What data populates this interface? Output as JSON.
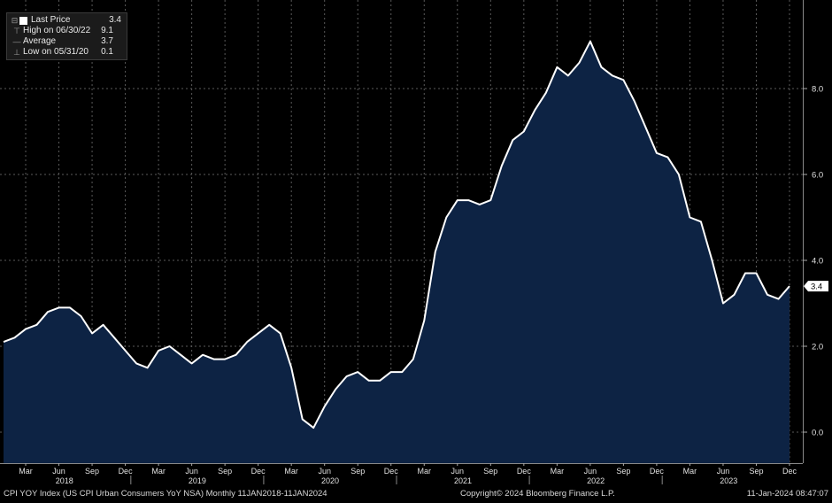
{
  "legend": {
    "items": [
      {
        "icon": "white-square-icon",
        "label": "Last Price",
        "value": "3.4"
      },
      {
        "icon": "high-marker-icon",
        "label": "High on 06/30/22",
        "value": "9.1"
      },
      {
        "icon": "average-marker-icon",
        "label": "Average",
        "value": "3.7"
      },
      {
        "icon": "low-marker-icon",
        "label": "Low on 05/31/20",
        "value": "0.1"
      }
    ]
  },
  "footer": {
    "left": "CPI YOY Index (US CPI Urban Consumers YoY NSA)  Monthly 11JAN2018-11JAN2024",
    "center": "Copyright© 2024 Bloomberg Finance L.P.",
    "right": "11-Jan-2024 08:47:07"
  },
  "last_price_tag": "3.4",
  "colors": {
    "background": "#000000",
    "area_fill": "#0d2344",
    "line": "#ffffff",
    "grid": "#666666"
  },
  "chart_data": {
    "type": "area",
    "ylim": [
      -0.7,
      9.8
    ],
    "yticks": [
      0.0,
      2.0,
      4.0,
      6.0,
      8.0
    ],
    "ytick_labels": [
      "0.0",
      "2.0",
      "4.0",
      "6.0",
      "8.0"
    ],
    "grid": true,
    "month_ticks": [
      "Mar",
      "Jun",
      "Sep",
      "Dec",
      "Mar",
      "Jun",
      "Sep",
      "Dec",
      "Mar",
      "Jun",
      "Sep",
      "Dec",
      "Mar",
      "Jun",
      "Sep",
      "Dec",
      "Mar",
      "Jun",
      "Sep",
      "Dec",
      "Mar",
      "Jun",
      "Sep",
      "Dec"
    ],
    "year_labels": [
      "2018",
      "2019",
      "2020",
      "2021",
      "2022",
      "2023"
    ],
    "x": [
      "2018-01",
      "2018-02",
      "2018-03",
      "2018-04",
      "2018-05",
      "2018-06",
      "2018-07",
      "2018-08",
      "2018-09",
      "2018-10",
      "2018-11",
      "2018-12",
      "2019-01",
      "2019-02",
      "2019-03",
      "2019-04",
      "2019-05",
      "2019-06",
      "2019-07",
      "2019-08",
      "2019-09",
      "2019-10",
      "2019-11",
      "2019-12",
      "2020-01",
      "2020-02",
      "2020-03",
      "2020-04",
      "2020-05",
      "2020-06",
      "2020-07",
      "2020-08",
      "2020-09",
      "2020-10",
      "2020-11",
      "2020-12",
      "2021-01",
      "2021-02",
      "2021-03",
      "2021-04",
      "2021-05",
      "2021-06",
      "2021-07",
      "2021-08",
      "2021-09",
      "2021-10",
      "2021-11",
      "2021-12",
      "2022-01",
      "2022-02",
      "2022-03",
      "2022-04",
      "2022-05",
      "2022-06",
      "2022-07",
      "2022-08",
      "2022-09",
      "2022-10",
      "2022-11",
      "2022-12",
      "2023-01",
      "2023-02",
      "2023-03",
      "2023-04",
      "2023-05",
      "2023-06",
      "2023-07",
      "2023-08",
      "2023-09",
      "2023-10",
      "2023-11",
      "2023-12"
    ],
    "values": [
      2.1,
      2.2,
      2.4,
      2.5,
      2.8,
      2.9,
      2.9,
      2.7,
      2.3,
      2.5,
      2.2,
      1.9,
      1.6,
      1.5,
      1.9,
      2.0,
      1.8,
      1.6,
      1.8,
      1.7,
      1.7,
      1.8,
      2.1,
      2.3,
      2.5,
      2.3,
      1.5,
      0.3,
      0.1,
      0.6,
      1.0,
      1.3,
      1.4,
      1.2,
      1.2,
      1.4,
      1.4,
      1.7,
      2.6,
      4.2,
      5.0,
      5.4,
      5.4,
      5.3,
      5.4,
      6.2,
      6.8,
      7.0,
      7.5,
      7.9,
      8.5,
      8.3,
      8.6,
      9.1,
      8.5,
      8.3,
      8.2,
      7.7,
      7.1,
      6.5,
      6.4,
      6.0,
      5.0,
      4.9,
      4.0,
      3.0,
      3.2,
      3.7,
      3.7,
      3.2,
      3.1,
      3.4
    ]
  }
}
